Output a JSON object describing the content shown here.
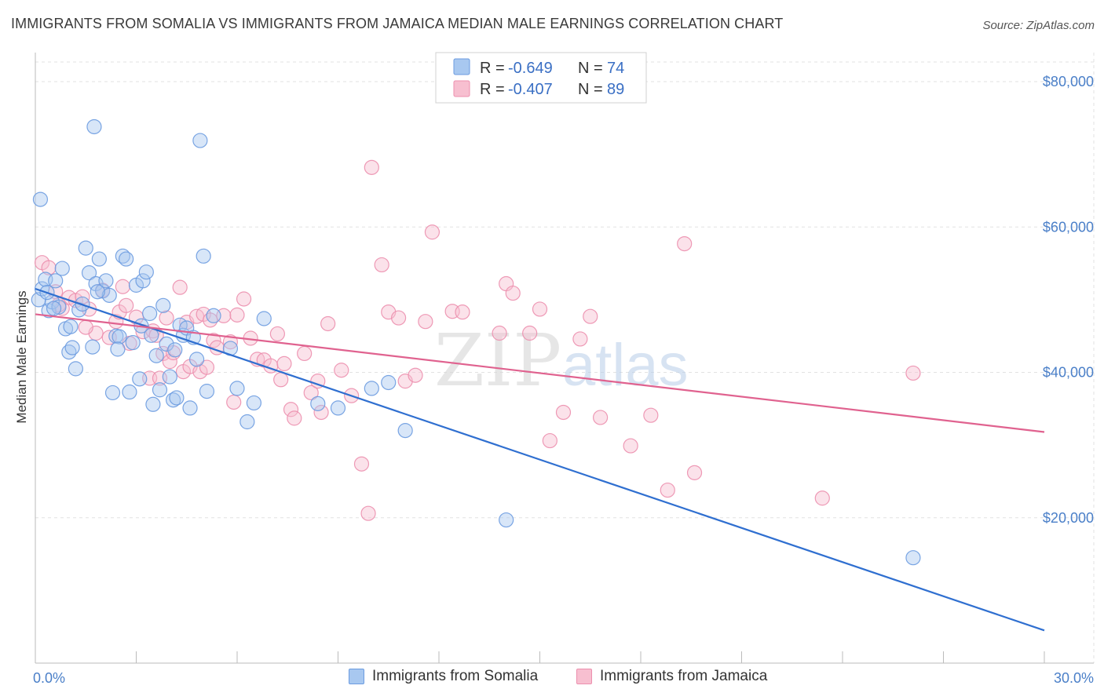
{
  "header": {
    "title": "IMMIGRANTS FROM SOMALIA VS IMMIGRANTS FROM JAMAICA MEDIAN MALE EARNINGS CORRELATION CHART",
    "source": "Source: ZipAtlas.com"
  },
  "watermark": {
    "zip": "ZIP",
    "atlas": "atlas"
  },
  "legend": {
    "items": [
      {
        "r_label": "R =",
        "r_value": "-0.649",
        "n_label": "N =",
        "n_value": "74"
      },
      {
        "r_label": "R =",
        "r_value": "-0.407",
        "n_label": "N =",
        "n_value": "89"
      }
    ]
  },
  "bottom_legend": {
    "somalia": "Immigrants from Somalia",
    "jamaica": "Immigrants from Jamaica"
  },
  "colors": {
    "somalia_fill": "#a8c8f0",
    "somalia_stroke": "#6b9be0",
    "somalia_line": "#2f6fd0",
    "jamaica_fill": "#f7bfd0",
    "jamaica_stroke": "#ec8fae",
    "jamaica_line": "#e0628f",
    "tick_text": "#4a7fc8"
  },
  "chart_data": {
    "type": "scatter",
    "title": "IMMIGRANTS FROM SOMALIA VS IMMIGRANTS FROM JAMAICA MEDIAN MALE EARNINGS CORRELATION CHART",
    "xlabel": "",
    "ylabel": "Median Male Earnings",
    "xlim": [
      0,
      30
    ],
    "ylim": [
      0,
      84000
    ],
    "x_tick_labels": [
      "0.0%",
      "30.0%"
    ],
    "y_ticks": [
      {
        "value": 20000,
        "label": "$20,000"
      },
      {
        "value": 40000,
        "label": "$40,000"
      },
      {
        "value": 60000,
        "label": "$60,000"
      },
      {
        "value": 80000,
        "label": "$80,000"
      }
    ],
    "grid": true,
    "series": [
      {
        "name": "Immigrants from Somalia",
        "color": "#6b9be0",
        "trendline": {
          "x": [
            0,
            30
          ],
          "y": [
            51500,
            4500
          ]
        },
        "points": [
          [
            0.1,
            50000
          ],
          [
            0.2,
            51500
          ],
          [
            0.3,
            52800
          ],
          [
            0.4,
            48500
          ],
          [
            0.5,
            49700
          ],
          [
            0.6,
            52600
          ],
          [
            0.7,
            49000
          ],
          [
            0.8,
            54300
          ],
          [
            0.9,
            46000
          ],
          [
            1.0,
            42800
          ],
          [
            1.1,
            43400
          ],
          [
            1.2,
            40500
          ],
          [
            1.3,
            48600
          ],
          [
            1.4,
            49400
          ],
          [
            1.5,
            57100
          ],
          [
            1.6,
            53700
          ],
          [
            1.7,
            43500
          ],
          [
            1.8,
            52200
          ],
          [
            1.9,
            55600
          ],
          [
            2.0,
            51200
          ],
          [
            2.1,
            52600
          ],
          [
            2.2,
            50600
          ],
          [
            2.3,
            37200
          ],
          [
            2.4,
            45000
          ],
          [
            2.5,
            44900
          ],
          [
            2.6,
            56000
          ],
          [
            2.7,
            55600
          ],
          [
            2.8,
            37300
          ],
          [
            2.9,
            44100
          ],
          [
            3.0,
            52000
          ],
          [
            3.1,
            39100
          ],
          [
            3.2,
            52600
          ],
          [
            3.3,
            53800
          ],
          [
            3.4,
            48100
          ],
          [
            3.5,
            35600
          ],
          [
            3.6,
            42300
          ],
          [
            3.7,
            37600
          ],
          [
            3.8,
            49200
          ],
          [
            3.9,
            43900
          ],
          [
            4.0,
            39400
          ],
          [
            4.1,
            36200
          ],
          [
            4.2,
            36500
          ],
          [
            4.3,
            46500
          ],
          [
            4.4,
            45100
          ],
          [
            4.5,
            46100
          ],
          [
            4.6,
            35100
          ],
          [
            4.7,
            44800
          ],
          [
            4.8,
            41800
          ],
          [
            4.9,
            71900
          ],
          [
            5.0,
            56000
          ],
          [
            5.1,
            37400
          ],
          [
            5.3,
            47800
          ],
          [
            5.8,
            43300
          ],
          [
            6.0,
            37800
          ],
          [
            6.3,
            33200
          ],
          [
            6.5,
            35800
          ],
          [
            6.8,
            47400
          ],
          [
            8.4,
            35700
          ],
          [
            9.0,
            35100
          ],
          [
            10.0,
            37800
          ],
          [
            10.5,
            38600
          ],
          [
            11.0,
            32000
          ],
          [
            14.0,
            19700
          ],
          [
            26.1,
            14500
          ],
          [
            0.15,
            63800
          ],
          [
            1.75,
            73800
          ],
          [
            0.35,
            51000
          ],
          [
            0.55,
            48800
          ],
          [
            1.05,
            46300
          ],
          [
            1.85,
            51100
          ],
          [
            2.45,
            43200
          ],
          [
            3.15,
            46400
          ],
          [
            3.45,
            45100
          ],
          [
            4.15,
            43100
          ]
        ]
      },
      {
        "name": "Immigrants from Jamaica",
        "color": "#ec8fae",
        "trendline": {
          "x": [
            0,
            30
          ],
          "y": [
            48000,
            31800
          ]
        },
        "points": [
          [
            0.2,
            55100
          ],
          [
            0.4,
            54400
          ],
          [
            0.6,
            51100
          ],
          [
            0.8,
            48800
          ],
          [
            1.0,
            50300
          ],
          [
            1.2,
            49900
          ],
          [
            1.4,
            50400
          ],
          [
            1.6,
            48700
          ],
          [
            1.8,
            45400
          ],
          [
            2.0,
            51300
          ],
          [
            2.2,
            44800
          ],
          [
            2.4,
            47000
          ],
          [
            2.5,
            48300
          ],
          [
            2.6,
            51800
          ],
          [
            2.7,
            49200
          ],
          [
            2.8,
            44000
          ],
          [
            3.0,
            47600
          ],
          [
            3.2,
            45600
          ],
          [
            3.4,
            39200
          ],
          [
            3.5,
            45700
          ],
          [
            3.6,
            45100
          ],
          [
            3.7,
            39200
          ],
          [
            3.8,
            42600
          ],
          [
            3.9,
            47500
          ],
          [
            4.0,
            41500
          ],
          [
            4.1,
            42700
          ],
          [
            4.3,
            51700
          ],
          [
            4.4,
            40100
          ],
          [
            4.5,
            46900
          ],
          [
            4.6,
            40800
          ],
          [
            4.8,
            47700
          ],
          [
            4.9,
            40100
          ],
          [
            5.0,
            48000
          ],
          [
            5.1,
            40700
          ],
          [
            5.2,
            47200
          ],
          [
            5.3,
            44400
          ],
          [
            5.6,
            47800
          ],
          [
            5.8,
            44200
          ],
          [
            5.9,
            35900
          ],
          [
            6.0,
            47900
          ],
          [
            6.2,
            50100
          ],
          [
            6.4,
            44700
          ],
          [
            6.6,
            41800
          ],
          [
            6.8,
            41700
          ],
          [
            7.0,
            40900
          ],
          [
            7.2,
            45300
          ],
          [
            7.4,
            41200
          ],
          [
            7.6,
            34900
          ],
          [
            7.7,
            33700
          ],
          [
            8.0,
            42600
          ],
          [
            8.2,
            37200
          ],
          [
            8.4,
            38800
          ],
          [
            8.5,
            34500
          ],
          [
            8.7,
            46700
          ],
          [
            9.1,
            40300
          ],
          [
            9.4,
            36800
          ],
          [
            9.7,
            27400
          ],
          [
            9.9,
            20600
          ],
          [
            10.0,
            68200
          ],
          [
            10.3,
            54800
          ],
          [
            10.5,
            48300
          ],
          [
            10.8,
            47500
          ],
          [
            11.0,
            38800
          ],
          [
            11.3,
            39600
          ],
          [
            11.6,
            47000
          ],
          [
            11.8,
            59300
          ],
          [
            12.4,
            48400
          ],
          [
            12.7,
            48300
          ],
          [
            13.8,
            45400
          ],
          [
            14.0,
            52200
          ],
          [
            14.2,
            50900
          ],
          [
            14.7,
            45400
          ],
          [
            15.0,
            48700
          ],
          [
            15.3,
            30600
          ],
          [
            15.7,
            34500
          ],
          [
            16.2,
            44600
          ],
          [
            16.5,
            47700
          ],
          [
            16.8,
            33800
          ],
          [
            17.7,
            29900
          ],
          [
            18.3,
            34100
          ],
          [
            18.8,
            23800
          ],
          [
            19.3,
            57700
          ],
          [
            19.6,
            26200
          ],
          [
            23.4,
            22700
          ],
          [
            26.1,
            39900
          ],
          [
            0.7,
            49300
          ],
          [
            1.5,
            46200
          ],
          [
            5.4,
            43400
          ],
          [
            7.3,
            39000
          ]
        ]
      }
    ]
  }
}
